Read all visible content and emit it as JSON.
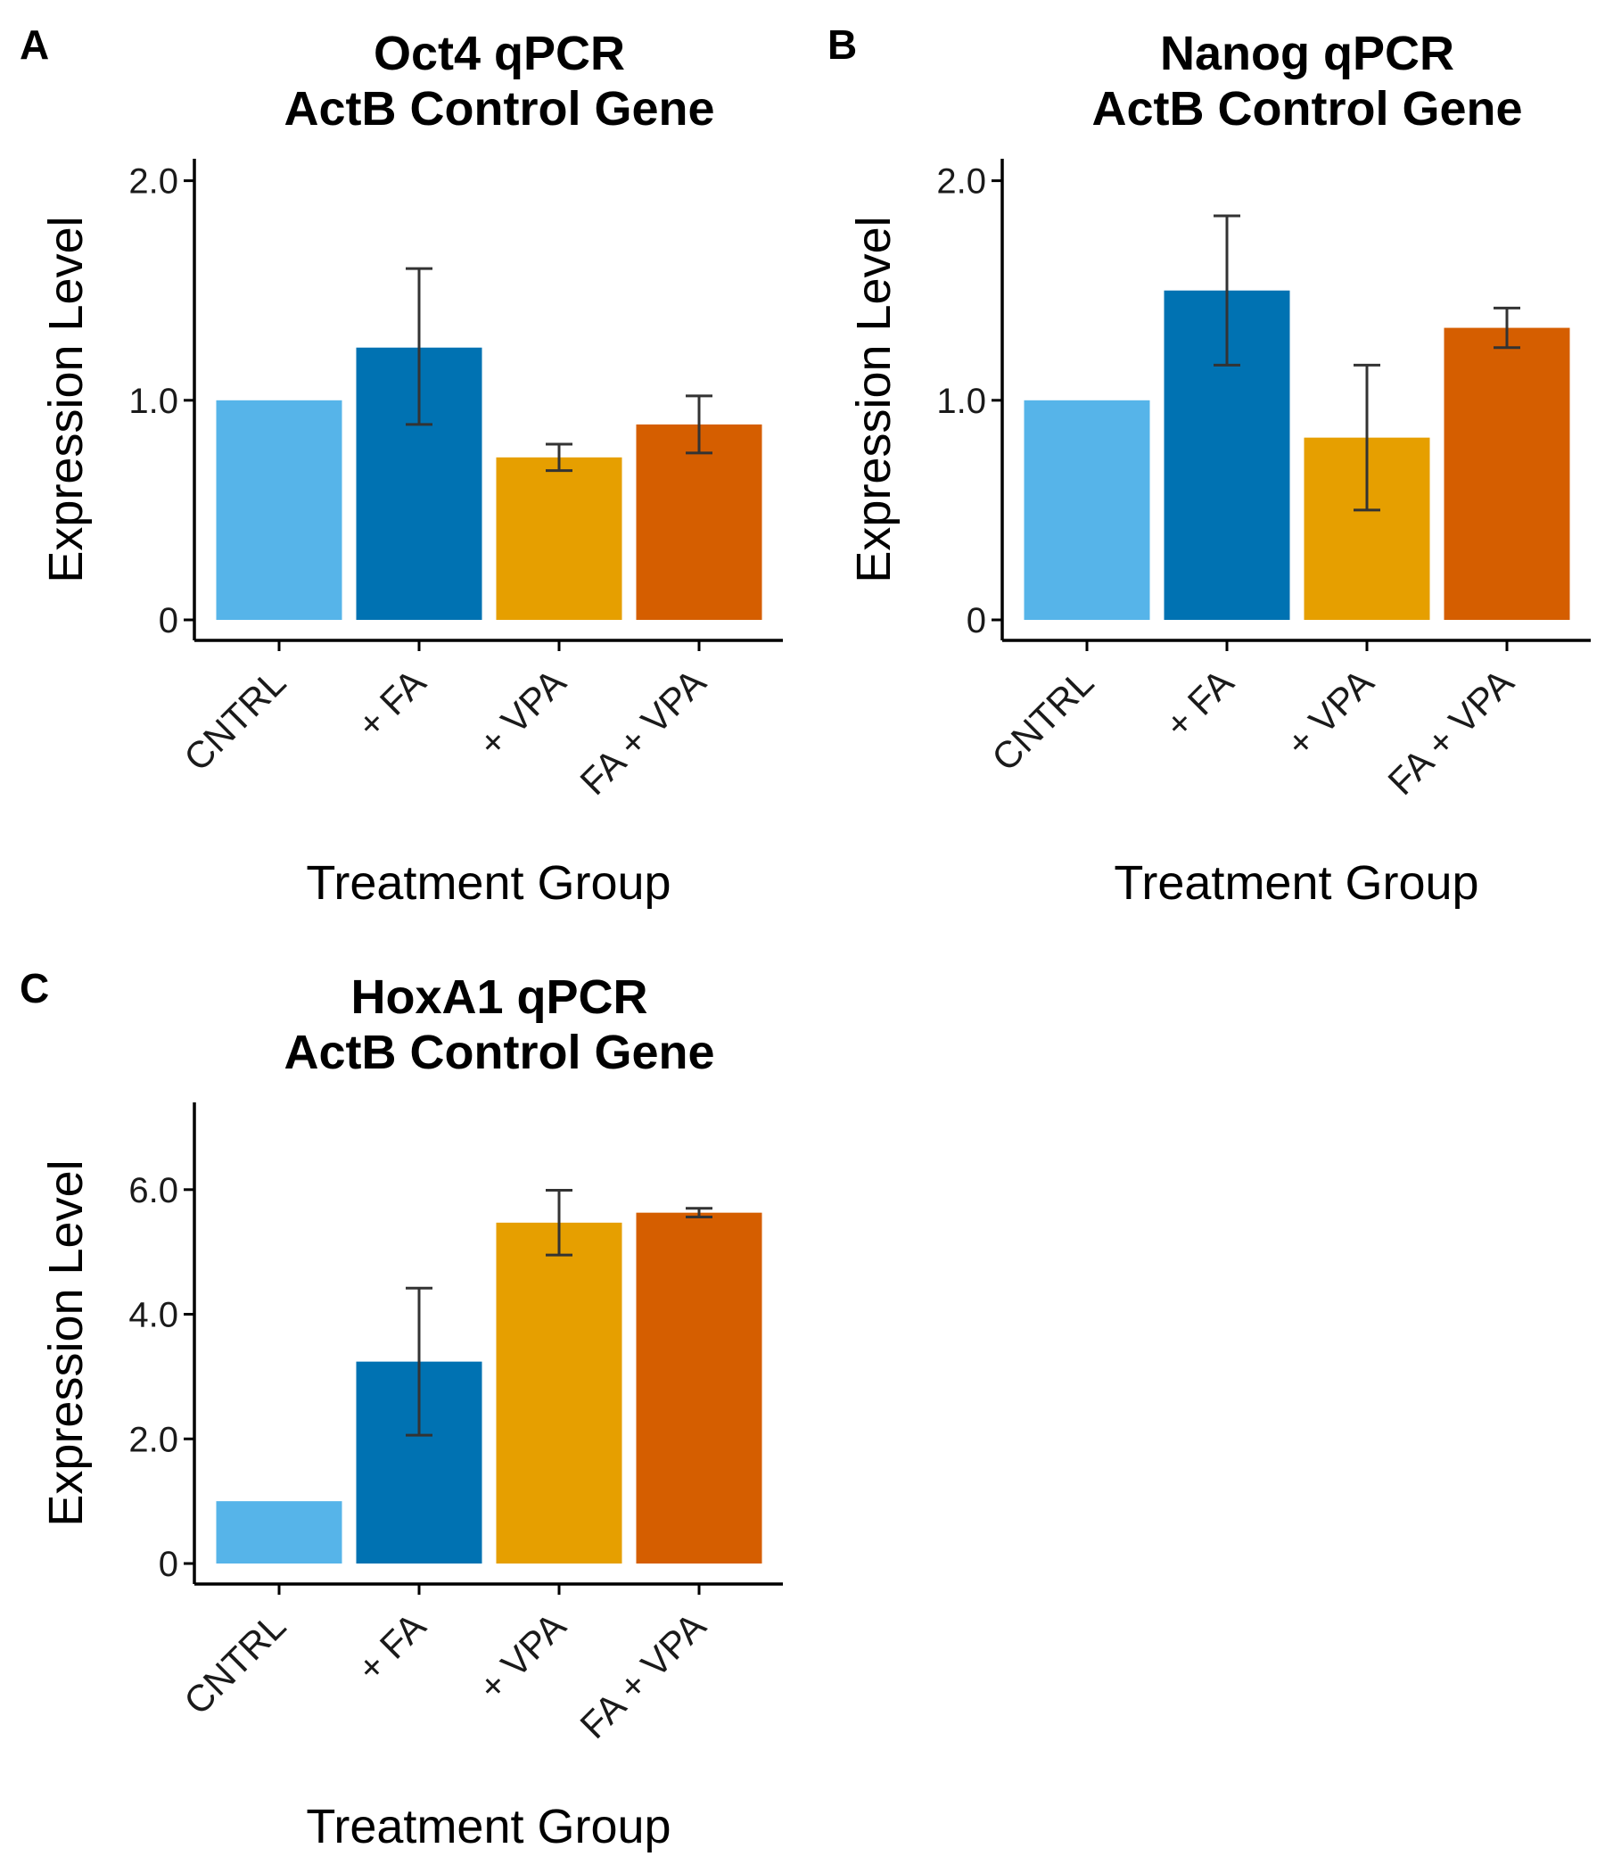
{
  "xlabel": "Treatment Group",
  "ylabel": "Expression Level",
  "categories": [
    "CNTRL",
    "+ FA",
    "+ VPA",
    "FA + VPA"
  ],
  "colors": [
    "#56B4E9",
    "#0072B2",
    "#E69F00",
    "#D55E00"
  ],
  "chart_data": [
    {
      "type": "bar",
      "panel": "A",
      "title_line1": "Oct4 qPCR",
      "title_line2": "ActB Control Gene",
      "xlabel": "Treatment Group",
      "ylabel": "Expression Level",
      "categories": [
        "CNTRL",
        "+ FA",
        "+ VPA",
        "FA + VPA"
      ],
      "values": [
        1.0,
        1.24,
        0.74,
        0.89
      ],
      "error_low": [
        1.0,
        0.89,
        0.68,
        0.76
      ],
      "error_high": [
        1.0,
        1.6,
        0.8,
        1.02
      ],
      "ylim": [
        0,
        2.1
      ],
      "yticks": [
        0,
        1.0,
        2.0
      ],
      "ytick_labels": [
        "0",
        "1.0",
        "2.0"
      ],
      "grid": false
    },
    {
      "type": "bar",
      "panel": "B",
      "title_line1": "Nanog qPCR",
      "title_line2": "ActB Control Gene",
      "xlabel": "Treatment Group",
      "ylabel": "Expression Level",
      "categories": [
        "CNTRL",
        "+ FA",
        "+ VPA",
        "FA + VPA"
      ],
      "values": [
        1.0,
        1.5,
        0.83,
        1.33
      ],
      "error_low": [
        1.0,
        1.16,
        0.5,
        1.24
      ],
      "error_high": [
        1.0,
        1.84,
        1.16,
        1.42
      ],
      "ylim": [
        0,
        2.1
      ],
      "yticks": [
        0,
        1.0,
        2.0
      ],
      "ytick_labels": [
        "0",
        "1.0",
        "2.0"
      ],
      "grid": false
    },
    {
      "type": "bar",
      "panel": "C",
      "title_line1": "HoxA1 qPCR",
      "title_line2": "ActB Control Gene",
      "xlabel": "Treatment Group",
      "ylabel": "Expression Level",
      "categories": [
        "CNTRL",
        "+ FA",
        "+ VPA",
        "FA + VPA"
      ],
      "values": [
        1.0,
        3.24,
        5.47,
        5.63
      ],
      "error_low": [
        1.0,
        2.06,
        4.95,
        5.56
      ],
      "error_high": [
        1.0,
        4.42,
        5.99,
        5.7
      ],
      "ylim": [
        0,
        7.4
      ],
      "yticks": [
        0,
        2.0,
        4.0,
        6.0
      ],
      "ytick_labels": [
        "0",
        "2.0",
        "4.0",
        "6.0"
      ],
      "grid": false
    }
  ]
}
